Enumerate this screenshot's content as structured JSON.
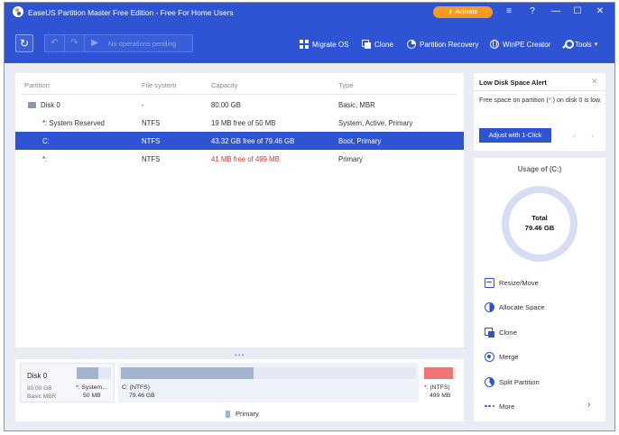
{
  "window": {
    "title": "EaseUS Partition Master Free Edition - Free For Home Users",
    "activate_label": "Activate",
    "menu_glyph": "≡",
    "help_glyph": "?",
    "minimize_glyph": "—",
    "maximize_glyph": "☐",
    "close_glyph": "✕"
  },
  "toolbar": {
    "refresh_glyph": "↻",
    "undo_glyph": "↶",
    "redo_glyph": "↷",
    "play_glyph": "▶",
    "pending_label": "No operations pending",
    "items": [
      {
        "label": "Migrate OS",
        "icon": "windows-icon"
      },
      {
        "label": "Clone",
        "icon": "clone-icon"
      },
      {
        "label": "Partition Recovery",
        "icon": "partition-recovery-icon"
      },
      {
        "label": "WinPE Creator",
        "icon": "globe-icon"
      },
      {
        "label": "Tools",
        "icon": "wrench-icon"
      }
    ],
    "tools_chevron": "▾"
  },
  "table": {
    "headers": {
      "partition": "Partition",
      "filesystem": "File system",
      "capacity": "Capacity",
      "type": "Type"
    },
    "rows": [
      {
        "partition": "Disk 0",
        "filesystem": "-",
        "capacity": "80.00 GB",
        "type": "Basic, MBR"
      },
      {
        "partition": "*: System Reserved",
        "filesystem": "NTFS",
        "capacity": "19 MB free of 50 MB",
        "type": "System, Active, Primary"
      },
      {
        "partition": "C:",
        "filesystem": "NTFS",
        "capacity": "43.32 GB free of 79.46 GB",
        "type": "Boot, Primary"
      },
      {
        "partition": "*:",
        "filesystem": "NTFS",
        "capacity": "41 MB free of 499 MB",
        "type": "Primary"
      }
    ]
  },
  "splitter": "•••",
  "disk_map": {
    "disk_name": "Disk 0",
    "disk_size": "80.00 GB",
    "disk_type": "Basic MBR",
    "partitions": [
      {
        "label": "*: System...",
        "size": "50 MB",
        "used_fraction": 0.62
      },
      {
        "label": "C: (NTFS)",
        "size": "79.46 GB",
        "used_fraction": 0.45
      },
      {
        "label": "*: (NTFS)",
        "size": "499 MB",
        "used_fraction": 0.92
      }
    ],
    "legend_primary": "Primary"
  },
  "alert": {
    "title": "Low Disk Space Alert",
    "close_glyph": "✕",
    "text_before": "Free space on partition (",
    "warn_part": "*:",
    "text_after": ") on disk 0 is low.",
    "button": "Adjust with 1-Click",
    "prev_glyph": "‹",
    "next_glyph": "›"
  },
  "usage": {
    "title": "Usage of (C:)",
    "total_label": "Total",
    "total_value": "79.46 GB",
    "actions": [
      {
        "label": "Resize/Move",
        "icon": "resize-move-icon"
      },
      {
        "label": "Allocate Space",
        "icon": "allocate-space-icon"
      },
      {
        "label": "Clone",
        "icon": "clone-icon"
      },
      {
        "label": "Merge",
        "icon": "merge-icon"
      },
      {
        "label": "Split Partition",
        "icon": "split-partition-icon"
      },
      {
        "label": "More",
        "icon": "more-icon"
      }
    ],
    "more_chevron": "›"
  },
  "colors": {
    "brand_blue": "#2f54d3",
    "activate_orange": "#f59a23",
    "warning_red": "#dd3333",
    "bar_used_blue": "#a2b3cf",
    "bar_used_red": "#f07474"
  }
}
